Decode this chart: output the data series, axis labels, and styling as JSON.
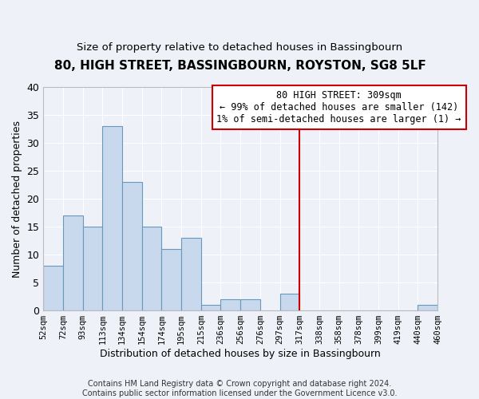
{
  "title": "80, HIGH STREET, BASSINGBOURN, ROYSTON, SG8 5LF",
  "subtitle": "Size of property relative to detached houses in Bassingbourn",
  "xlabel": "Distribution of detached houses by size in Bassingbourn",
  "ylabel": "Number of detached properties",
  "bar_values": [
    8,
    17,
    15,
    33,
    23,
    15,
    11,
    13,
    1,
    2,
    2,
    0,
    3,
    0,
    0,
    0,
    0,
    0,
    0,
    1
  ],
  "categories": [
    "52sqm",
    "72sqm",
    "93sqm",
    "113sqm",
    "134sqm",
    "154sqm",
    "174sqm",
    "195sqm",
    "215sqm",
    "236sqm",
    "256sqm",
    "276sqm",
    "297sqm",
    "317sqm",
    "338sqm",
    "358sqm",
    "378sqm",
    "399sqm",
    "419sqm",
    "440sqm",
    "460sqm"
  ],
  "bar_color": "#c8d8ed",
  "bar_edge_color": "#6699bb",
  "background_color": "#eef2f8",
  "grid_color": "#ffffff",
  "annotation_text": "80 HIGH STREET: 309sqm\n← 99% of detached houses are smaller (142)\n1% of semi-detached houses are larger (1) →",
  "vline_x_bar_index": 12,
  "vline_color": "#cc0000",
  "annotation_box_color": "#ffffff",
  "annotation_box_edge": "#cc0000",
  "footer_text": "Contains HM Land Registry data © Crown copyright and database right 2024.\nContains public sector information licensed under the Government Licence v3.0.",
  "ylim": [
    0,
    40
  ],
  "yticks": [
    0,
    5,
    10,
    15,
    20,
    25,
    30,
    35,
    40
  ]
}
